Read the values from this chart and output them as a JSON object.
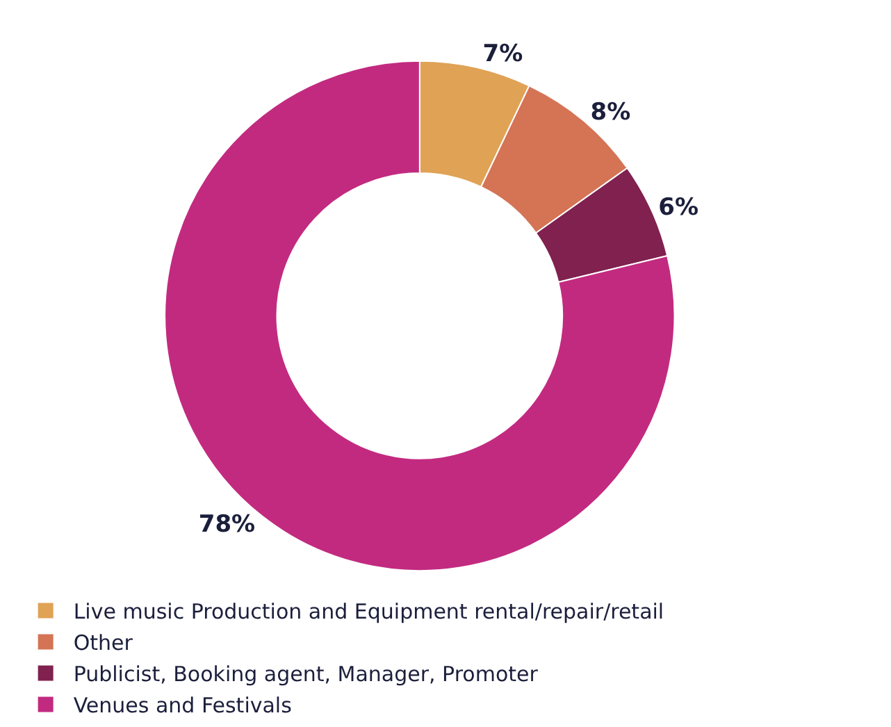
{
  "chart_data": {
    "type": "donut",
    "categories": [
      "Live music Production and Equipment rental/repair/retail",
      "Other",
      "Publicist, Booking agent, Manager, Promoter",
      "Venues and Festivals"
    ],
    "values": [
      7,
      8,
      6,
      78
    ],
    "value_labels": [
      "7%",
      "8%",
      "6%",
      "78%"
    ],
    "colors": [
      "#e0a255",
      "#d47455",
      "#80214f",
      "#c22a80"
    ],
    "legend": "bottom"
  }
}
